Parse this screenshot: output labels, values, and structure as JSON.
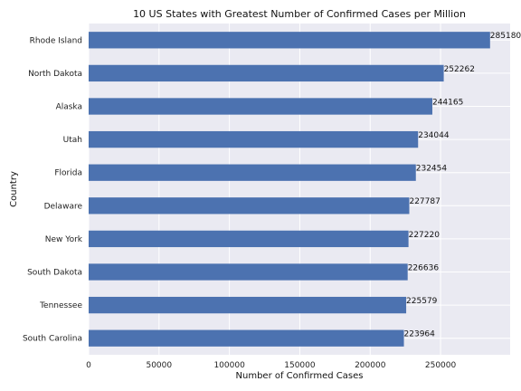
{
  "chart_data": {
    "type": "bar",
    "orientation": "horizontal",
    "title": "10 US States with Greatest Number of Confirmed Cases per Million",
    "xlabel": "Number of Confirmed Cases",
    "ylabel": "Country",
    "categories": [
      "Rhode Island",
      "North Dakota",
      "Alaska",
      "Utah",
      "Florida",
      "Delaware",
      "New York",
      "South Dakota",
      "Tennessee",
      "South Carolina"
    ],
    "values": [
      285180,
      252262,
      244165,
      234044,
      232454,
      227787,
      227220,
      226636,
      225579,
      223964
    ],
    "data_labels": [
      "285180",
      "252262",
      "244165",
      "234044",
      "232454",
      "227787",
      "227220",
      "226636",
      "225579",
      "223964"
    ],
    "x_ticks": [
      0,
      50000,
      100000,
      150000,
      200000,
      250000
    ],
    "x_tick_labels": [
      "0",
      "50000",
      "100000",
      "150000",
      "200000",
      "250000"
    ],
    "xlim": [
      0,
      299439
    ],
    "grid": true,
    "legend": "none",
    "colors": {
      "bar": "#4c72b0",
      "plot_background": "#eaeaf2",
      "grid": "#ffffff"
    }
  }
}
